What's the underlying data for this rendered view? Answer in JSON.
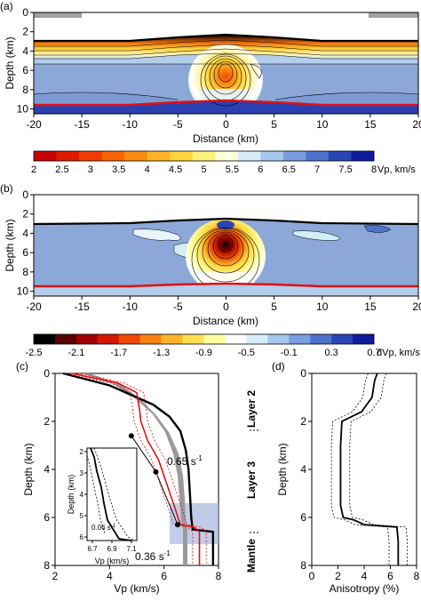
{
  "panels": {
    "a": {
      "label": "(a)",
      "ylabel": "Depth (km)",
      "xlabel": "Distance (km)",
      "xticks": [
        "-20",
        "-15",
        "-10",
        "-5",
        "0",
        "5",
        "10",
        "15",
        "20"
      ],
      "yticks": [
        "0",
        "2",
        "4",
        "6",
        "8",
        "10"
      ]
    },
    "b": {
      "label": "(b)",
      "ylabel": "Depth (km)",
      "xlabel": "Distance (km)",
      "xticks": [
        "-20",
        "-15",
        "-10",
        "-5",
        "0",
        "5",
        "10",
        "15",
        "20"
      ],
      "yticks": [
        "0",
        "2",
        "4",
        "6",
        "8",
        "10"
      ]
    },
    "c": {
      "label": "(c)",
      "ylabel": "Depth (km)",
      "xlabel": "Vp (km/s)",
      "xticks": [
        "2",
        "4",
        "6",
        "8"
      ],
      "yticks": [
        "0",
        "2",
        "4",
        "6",
        "8"
      ],
      "layers": [
        "Layer 2",
        "Layer 3",
        "Mantle"
      ],
      "grad1": "0.65 s",
      "grad2": "0.36 s",
      "exp": "-1",
      "inset": {
        "ylabel": "Depth (km)",
        "xlabel": "Vp (km/s)",
        "xticks": [
          "6.7",
          "6.9",
          "7.1"
        ],
        "yticks": [
          "2",
          "3",
          "4",
          "5",
          "6"
        ],
        "grad": "0.06 s"
      }
    },
    "d": {
      "label": "(d)",
      "ylabel": "Depth (km)",
      "xlabel": "Anisotropy (%)",
      "xticks": [
        "0",
        "2",
        "4",
        "6",
        "8"
      ],
      "yticks": [
        "0",
        "2",
        "4",
        "6",
        "8"
      ]
    }
  },
  "colorbar_vp": {
    "ticks": [
      "2",
      "2.5",
      "3",
      "3.5",
      "4",
      "4.5",
      "5",
      "5.5",
      "6",
      "6.5",
      "7",
      "7.5",
      "8"
    ],
    "unit": "Vp, km/s",
    "colors": [
      "#c80000",
      "#e01800",
      "#f03c00",
      "#f86400",
      "#fc8c10",
      "#feb424",
      "#fed43c",
      "#fff07a",
      "#ffffd8",
      "#d4eef8",
      "#a6c8ec",
      "#7a9ee0",
      "#4e72cc",
      "#2a46b4",
      "#0c1c9c"
    ]
  },
  "colorbar_dvp": {
    "ticks": [
      "-2.5",
      "-2.1",
      "-1.7",
      "-1.3",
      "-0.9",
      "-0.5",
      "-0.1",
      "0.3",
      "0.7"
    ],
    "unit": "dVp, km/s",
    "colors": [
      "#000000",
      "#5a0000",
      "#a00000",
      "#d21800",
      "#f04800",
      "#fc8010",
      "#feb428",
      "#fee050",
      "#ffffa0",
      "#ffffff",
      "#d4eef8",
      "#a6c8ec",
      "#7a9ee0",
      "#4e72cc",
      "#2a46b4",
      "#0c1c9c"
    ]
  },
  "chart_data": [
    {
      "type": "heatmap",
      "id": "a",
      "xlabel": "Distance (km)",
      "ylabel": "Depth (km)",
      "xlim": [
        -20,
        20
      ],
      "ylim": [
        0,
        10.5
      ],
      "seafloor_depth": [
        [
          -20,
          3.0
        ],
        [
          -10,
          3.0
        ],
        [
          -4,
          2.7
        ],
        [
          0,
          2.5
        ],
        [
          4,
          2.7
        ],
        [
          10,
          3.0
        ],
        [
          20,
          3.0
        ]
      ],
      "moho_depth": [
        [
          -20,
          9.5
        ],
        [
          -10,
          9.5
        ],
        [
          -5,
          9.1
        ],
        [
          0,
          8.9
        ],
        [
          5,
          9.1
        ],
        [
          10,
          9.4
        ],
        [
          20,
          9.5
        ]
      ],
      "color_range": [
        2,
        8
      ]
    },
    {
      "type": "heatmap",
      "id": "b",
      "xlabel": "Distance (km)",
      "ylabel": "Depth (km)",
      "xlim": [
        -20,
        20
      ],
      "ylim": [
        0,
        10.5
      ],
      "seafloor_depth": [
        [
          -20,
          3.1
        ],
        [
          -10,
          3.0
        ],
        [
          0,
          2.6
        ],
        [
          10,
          3.0
        ],
        [
          20,
          3.1
        ]
      ],
      "moho_depth": [
        [
          -20,
          9.5
        ],
        [
          -10,
          9.4
        ],
        [
          -5,
          9.1
        ],
        [
          0,
          9.0
        ],
        [
          5,
          9.1
        ],
        [
          10,
          9.4
        ],
        [
          20,
          9.5
        ]
      ],
      "color_range": [
        -2.5,
        0.7
      ]
    },
    {
      "type": "line",
      "id": "c",
      "xlabel": "Vp (km/s)",
      "ylabel": "Depth (km)",
      "xlim": [
        2,
        8
      ],
      "ylim": [
        0,
        8
      ],
      "series": [
        {
          "points": [
            [
              2.3,
              0
            ],
            [
              4.0,
              0.5
            ],
            [
              4.8,
              0.9
            ],
            [
              5.6,
              1.3
            ],
            [
              6.2,
              1.8
            ],
            [
              6.6,
              2.4
            ],
            [
              6.8,
              3.2
            ],
            [
              6.9,
              4.0
            ],
            [
              6.95,
              5.0
            ],
            [
              7.0,
              6.0
            ],
            [
              7.05,
              6.5
            ],
            [
              7.8,
              6.6
            ],
            [
              7.8,
              8.0
            ]
          ]
        },
        {
          "points": [
            [
              2.6,
              0
            ],
            [
              4.3,
              0.4
            ],
            [
              5.0,
              0.8
            ],
            [
              5.1,
              1.5
            ],
            [
              5.15,
              2.0
            ],
            [
              5.4,
              2.8
            ],
            [
              5.8,
              3.6
            ],
            [
              6.1,
              4.6
            ],
            [
              6.4,
              5.6
            ],
            [
              6.6,
              6.3
            ],
            [
              7.1,
              6.4
            ],
            [
              7.3,
              6.6
            ],
            [
              7.3,
              8.0
            ]
          ]
        },
        {
          "points": [
            [
              4.8,
              2.6
            ],
            [
              5.7,
              4.1
            ],
            [
              6.5,
              6.3
            ]
          ]
        }
      ],
      "markers": [
        [
          4.8,
          2.6
        ],
        [
          5.7,
          4.1
        ],
        [
          6.5,
          6.3
        ]
      ]
    },
    {
      "type": "line",
      "id": "d",
      "xlabel": "Anisotropy (%)",
      "ylabel": "Depth (km)",
      "xlim": [
        0,
        8
      ],
      "ylim": [
        0,
        8
      ],
      "series": [
        {
          "points": [
            [
              5.0,
              0
            ],
            [
              4.8,
              0.3
            ],
            [
              4.6,
              1.0
            ],
            [
              3.8,
              1.6
            ],
            [
              2.3,
              2.0
            ],
            [
              2.2,
              3.0
            ],
            [
              2.2,
              5.5
            ],
            [
              2.4,
              6.0
            ],
            [
              3.2,
              6.1
            ],
            [
              4.0,
              6.3
            ],
            [
              6.5,
              6.4
            ],
            [
              6.6,
              7.0
            ],
            [
              6.6,
              8.0
            ]
          ]
        }
      ]
    }
  ]
}
